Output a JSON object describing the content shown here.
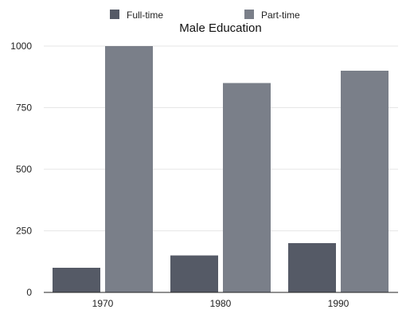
{
  "chart_data": {
    "type": "bar",
    "title": "Male Education",
    "categories": [
      "1970",
      "1980",
      "1990"
    ],
    "series": [
      {
        "name": "Full-time",
        "color": "#555a66",
        "values": [
          100,
          150,
          200
        ]
      },
      {
        "name": "Part-time",
        "color": "#7a7f89",
        "values": [
          1000,
          850,
          900
        ]
      }
    ],
    "ylim": [
      0,
      1000
    ],
    "yticks": [
      0,
      250,
      500,
      750,
      1000
    ],
    "grid": true,
    "legend_position": "top"
  }
}
